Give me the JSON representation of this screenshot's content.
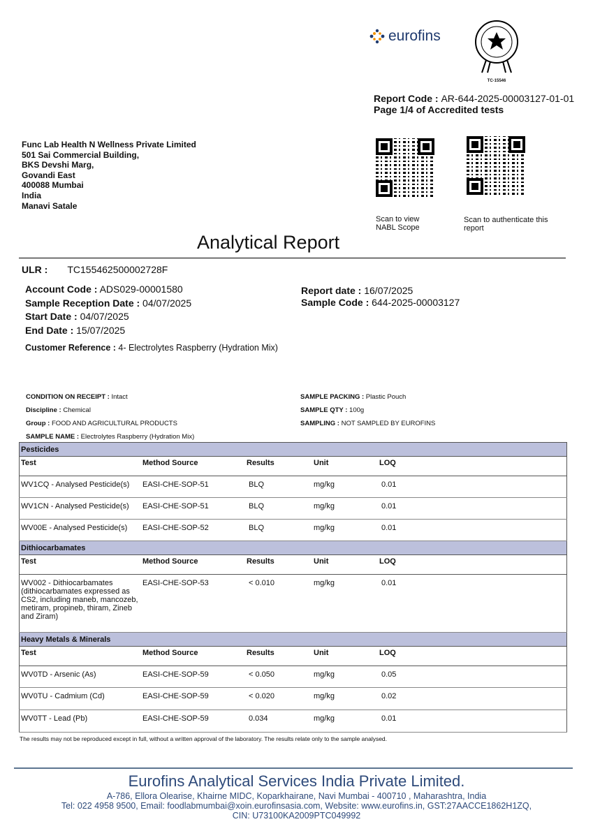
{
  "header": {
    "logo_text": "eurofins",
    "seal_code": "TC-15546",
    "report_code_label": "Report Code :",
    "report_code": "AR-644-2025-00003127-01-01",
    "page_info": "Page 1/4 of Accredited tests"
  },
  "address": [
    "Func Lab Health N Wellness Private Limited",
    "501 Sai Commercial Building,",
    "BKS Devshi Marg,",
    "Govandi East",
    "400088 Mumbai",
    "India",
    "Manavi Satale"
  ],
  "qr": {
    "nabl_caption": "Scan to view NABL Scope",
    "auth_caption": "Scan to authenticate this report"
  },
  "title": "Analytical Report",
  "ulr": {
    "label": "ULR :",
    "value": "TC155462500002728F"
  },
  "info": {
    "account_code_label": "Account Code :",
    "account_code": "ADS029-00001580",
    "reception_label": "Sample Reception Date :",
    "reception": "04/07/2025",
    "start_label": "Start Date :",
    "start": "04/07/2025",
    "end_label": "End Date :",
    "end": "15/07/2025",
    "report_date_label": "Report date :",
    "report_date": "16/07/2025",
    "sample_code_label": "Sample Code :",
    "sample_code": "644-2025-00003127",
    "customer_ref_label": "Customer Reference :",
    "customer_ref": "4- Electrolytes Raspberry (Hydration Mix)"
  },
  "conditions": {
    "condition_label": "CONDITION ON RECEIPT :",
    "condition": "Intact",
    "discipline_label": "Discipline :",
    "discipline": "Chemical",
    "group_label": "Group :",
    "group": "FOOD AND AGRICULTURAL PRODUCTS",
    "sample_name_label": "SAMPLE NAME :",
    "sample_name": "Electrolytes Raspberry (Hydration Mix)",
    "packing_label": "SAMPLE PACKING :",
    "packing": "Plastic Pouch",
    "qty_label": "SAMPLE QTY :",
    "qty": "100g",
    "sampling_label": "SAMPLING :",
    "sampling": "NOT SAMPLED BY EUROFINS"
  },
  "columns": [
    "Test",
    "Method Source",
    "Results",
    "Unit",
    "LOQ"
  ],
  "sections": [
    {
      "name": "Pesticides",
      "rows": [
        [
          "WV1CQ - Analysed Pesticide(s)",
          "EASI-CHE-SOP-51",
          "BLQ",
          "mg/kg",
          "0.01"
        ],
        [
          "WV1CN - Analysed Pesticide(s)",
          "EASI-CHE-SOP-51",
          "BLQ",
          "mg/kg",
          "0.01"
        ],
        [
          "WV00E - Analysed Pesticide(s)",
          "EASI-CHE-SOP-52",
          "BLQ",
          "mg/kg",
          "0.01"
        ]
      ]
    },
    {
      "name": "Dithiocarbamates",
      "rows": [
        [
          "WV002 - Dithiocarbamates (dithiocarbamates expressed as CS2, including maneb, mancozeb, metiram, propineb, thiram, Zineb and Ziram)",
          "EASI-CHE-SOP-53",
          "< 0.010",
          "mg/kg",
          "0.01"
        ]
      ]
    },
    {
      "name": "Heavy Metals & Minerals",
      "rows": [
        [
          "WV0TD - Arsenic (As)",
          "EASI-CHE-SOP-59",
          "< 0.050",
          "mg/kg",
          "0.05"
        ],
        [
          "WV0TU - Cadmium (Cd)",
          "EASI-CHE-SOP-59",
          "< 0.020",
          "mg/kg",
          "0.02"
        ],
        [
          "WV0TT - Lead (Pb)",
          "EASI-CHE-SOP-59",
          "0.034",
          "mg/kg",
          "0.01"
        ]
      ]
    }
  ],
  "disclaimer": "The results may not be reproduced except in full, without a written approval of the laboratory. The results relate only to the sample analysed.",
  "footer": {
    "company": "Eurofins Analytical Services India Private Limited.",
    "address": "A-786, Ellora Olearise, Khairne MIDC, Koparkhairane, Navi Mumbai - 400710 , Maharashtra, India",
    "contact": "Tel: 022 4958 9500, Email: foodlabmumbai@xoin.eurofinsasia.com, Website: www.eurofins.in, GST:27AACCE1862H1ZQ,",
    "cin": "CIN: U73100KA2009PTC049992"
  },
  "colors": {
    "footer_blue": "#2e4a7a",
    "section_bg": "#bcc0dc",
    "logo_blue": "#1f3a6e",
    "logo_orange": "#f39200"
  }
}
